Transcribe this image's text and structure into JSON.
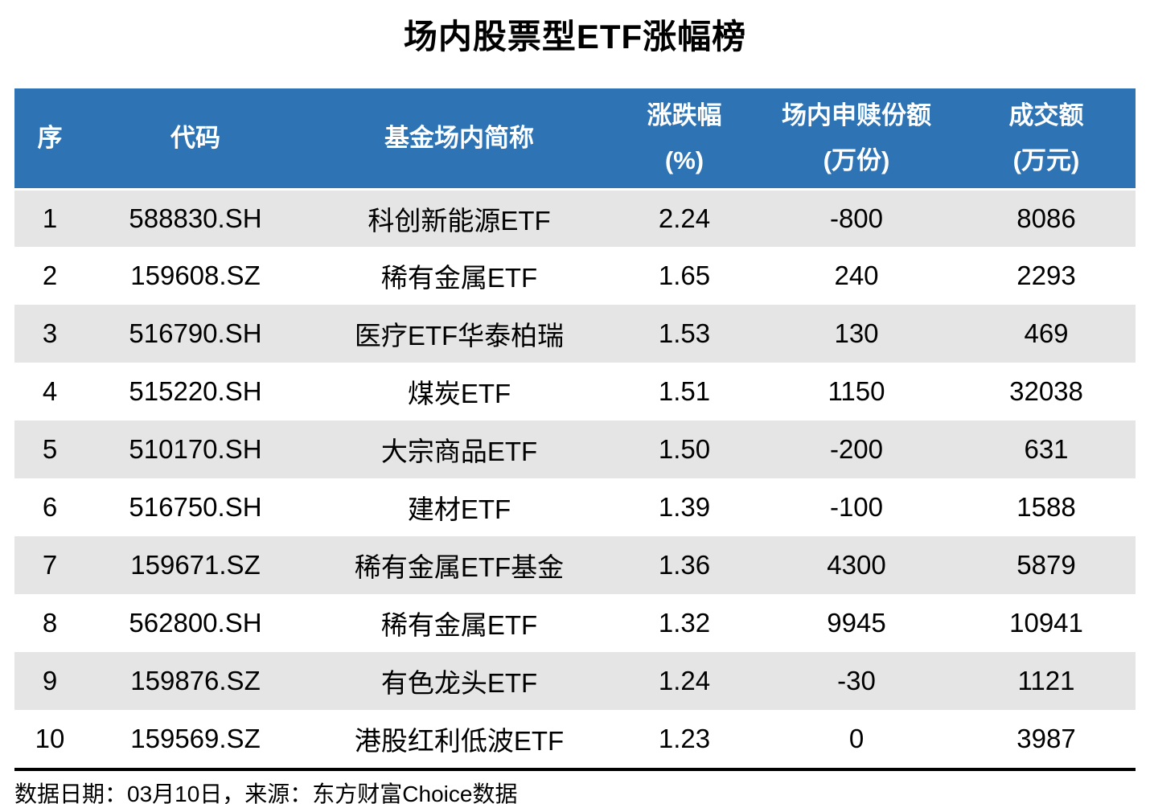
{
  "colors": {
    "header_bg": "#2E74B5",
    "header_text": "#FFFFFF",
    "row_alt_bg": "#E5E5E5",
    "text": "#000000",
    "divider": "#000000"
  },
  "chart_data": {
    "type": "table",
    "title": "场内股票型ETF涨幅榜",
    "headers": {
      "rank": "序",
      "code": "代码",
      "name": "基金场内简称",
      "change_line1": "涨跌幅",
      "change_line2": "(%)",
      "shares_line1": "场内申赎份额",
      "shares_line2": "(万份)",
      "turnover_line1": "成交额",
      "turnover_line2": "(万元)"
    },
    "rows": [
      {
        "rank": "1",
        "code": "588830.SH",
        "name": "科创新能源ETF",
        "change_pct": "2.24",
        "shares_10k": "-800",
        "turnover_10k": "8086"
      },
      {
        "rank": "2",
        "code": "159608.SZ",
        "name": "稀有金属ETF",
        "change_pct": "1.65",
        "shares_10k": "240",
        "turnover_10k": "2293"
      },
      {
        "rank": "3",
        "code": "516790.SH",
        "name": "医疗ETF华泰柏瑞",
        "change_pct": "1.53",
        "shares_10k": "130",
        "turnover_10k": "469"
      },
      {
        "rank": "4",
        "code": "515220.SH",
        "name": "煤炭ETF",
        "change_pct": "1.51",
        "shares_10k": "1150",
        "turnover_10k": "32038"
      },
      {
        "rank": "5",
        "code": "510170.SH",
        "name": "大宗商品ETF",
        "change_pct": "1.50",
        "shares_10k": "-200",
        "turnover_10k": "631"
      },
      {
        "rank": "6",
        "code": "516750.SH",
        "name": "建材ETF",
        "change_pct": "1.39",
        "shares_10k": "-100",
        "turnover_10k": "1588"
      },
      {
        "rank": "7",
        "code": "159671.SZ",
        "name": "稀有金属ETF基金",
        "change_pct": "1.36",
        "shares_10k": "4300",
        "turnover_10k": "5879"
      },
      {
        "rank": "8",
        "code": "562800.SH",
        "name": "稀有金属ETF",
        "change_pct": "1.32",
        "shares_10k": "9945",
        "turnover_10k": "10941"
      },
      {
        "rank": "9",
        "code": "159876.SZ",
        "name": "有色龙头ETF",
        "change_pct": "1.24",
        "shares_10k": "-30",
        "turnover_10k": "1121"
      },
      {
        "rank": "10",
        "code": "159569.SZ",
        "name": "港股红利低波ETF",
        "change_pct": "1.23",
        "shares_10k": "0",
        "turnover_10k": "3987"
      }
    ],
    "footer": "数据日期：03月10日，来源：东方财富Choice数据"
  }
}
